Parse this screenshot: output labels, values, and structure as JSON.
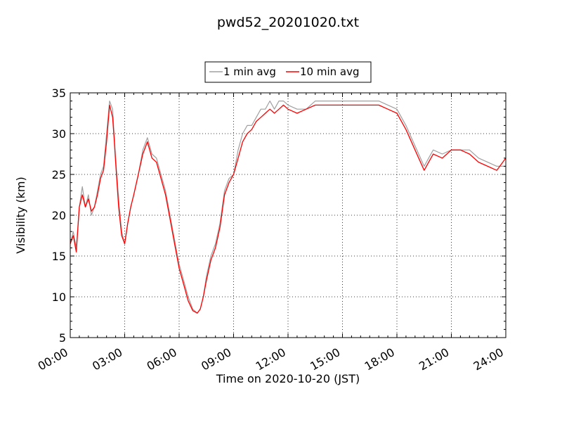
{
  "chart_data": {
    "type": "line",
    "title": "pwd52_20201020.txt",
    "xlabel": "Time on 2020-10-20 (JST)",
    "ylabel": "Visibility (km)",
    "xlim": [
      "00:00",
      "24:00"
    ],
    "ylim": [
      5,
      35
    ],
    "x_ticks": [
      "00:00",
      "03:00",
      "06:00",
      "09:00",
      "12:00",
      "15:00",
      "18:00",
      "21:00",
      "24:00"
    ],
    "y_ticks": [
      5,
      10,
      15,
      20,
      25,
      30,
      35
    ],
    "grid": true,
    "legend_position": "top-center",
    "series": [
      {
        "name": "1 min avg",
        "color": "#a0a0a0",
        "time": [
          "00:00",
          "00:10",
          "00:20",
          "00:30",
          "00:40",
          "00:50",
          "01:00",
          "01:10",
          "01:20",
          "01:30",
          "01:40",
          "01:50",
          "02:00",
          "02:10",
          "02:20",
          "02:25",
          "02:30",
          "02:40",
          "02:50",
          "03:00",
          "03:10",
          "03:20",
          "03:30",
          "03:45",
          "04:00",
          "04:15",
          "04:30",
          "04:45",
          "05:00",
          "05:15",
          "05:30",
          "05:45",
          "06:00",
          "06:15",
          "06:30",
          "06:45",
          "07:00",
          "07:10",
          "07:20",
          "07:30",
          "07:45",
          "08:00",
          "08:15",
          "08:30",
          "08:45",
          "09:00",
          "09:15",
          "09:30",
          "09:45",
          "10:00",
          "10:15",
          "10:30",
          "10:45",
          "11:00",
          "11:15",
          "11:30",
          "11:45",
          "12:00",
          "12:30",
          "13:00",
          "13:30",
          "14:00",
          "14:30",
          "15:00",
          "15:30",
          "16:00",
          "16:30",
          "17:00",
          "17:30",
          "18:00",
          "18:30",
          "19:00",
          "19:30",
          "19:45",
          "20:00",
          "20:30",
          "21:00",
          "21:30",
          "22:00",
          "22:30",
          "23:00",
          "23:30",
          "24:00"
        ],
        "values": [
          16.5,
          18,
          16,
          21,
          23.5,
          21,
          22.5,
          20,
          21,
          23,
          25,
          26,
          30,
          34,
          33,
          30,
          27,
          22,
          18,
          16.5,
          19,
          21,
          22.5,
          25,
          28,
          29.5,
          27.5,
          27,
          25,
          23,
          20,
          17,
          14,
          12,
          10,
          8.5,
          8,
          8.5,
          10,
          12.5,
          15,
          16.5,
          19,
          23,
          24.5,
          25,
          28,
          30,
          31,
          31,
          32,
          33,
          33,
          34,
          33,
          34,
          34,
          33.5,
          33,
          33,
          34,
          34,
          34,
          34,
          34,
          34,
          34,
          34,
          33.5,
          33,
          31,
          28.5,
          26,
          27,
          28,
          27.5,
          28,
          28,
          28,
          27,
          26.5,
          26,
          26
        ]
      },
      {
        "name": "10 min avg",
        "color": "#ff0000",
        "time": [
          "00:00",
          "00:10",
          "00:20",
          "00:30",
          "00:40",
          "00:50",
          "01:00",
          "01:10",
          "01:20",
          "01:30",
          "01:40",
          "01:50",
          "02:00",
          "02:10",
          "02:20",
          "02:25",
          "02:30",
          "02:40",
          "02:50",
          "03:00",
          "03:10",
          "03:20",
          "03:30",
          "03:45",
          "04:00",
          "04:15",
          "04:30",
          "04:45",
          "05:00",
          "05:15",
          "05:30",
          "05:45",
          "06:00",
          "06:15",
          "06:30",
          "06:45",
          "07:00",
          "07:10",
          "07:20",
          "07:30",
          "07:45",
          "08:00",
          "08:15",
          "08:30",
          "08:45",
          "09:00",
          "09:15",
          "09:30",
          "09:45",
          "10:00",
          "10:15",
          "10:30",
          "10:45",
          "11:00",
          "11:15",
          "11:30",
          "11:45",
          "12:00",
          "12:30",
          "13:00",
          "13:30",
          "14:00",
          "14:30",
          "15:00",
          "15:30",
          "16:00",
          "16:30",
          "17:00",
          "17:30",
          "18:00",
          "18:30",
          "19:00",
          "19:30",
          "19:45",
          "20:00",
          "20:30",
          "21:00",
          "21:30",
          "22:00",
          "22:30",
          "23:00",
          "23:30",
          "24:00"
        ],
        "values": [
          16.5,
          17.5,
          15.5,
          21,
          22.5,
          21,
          22,
          20.5,
          21,
          22.5,
          24.5,
          25.5,
          29,
          33.5,
          32,
          29.5,
          26.5,
          21,
          17.5,
          16.5,
          19,
          21,
          22.5,
          25,
          27.5,
          29,
          27,
          26.5,
          24.5,
          22.5,
          19.5,
          16.5,
          13.5,
          11.5,
          9.5,
          8.3,
          8.0,
          8.5,
          10,
          12,
          14.5,
          16,
          18.5,
          22.5,
          24,
          25,
          27,
          29,
          30,
          30.5,
          31.5,
          32,
          32.5,
          33,
          32.5,
          33,
          33.5,
          33,
          32.5,
          33,
          33.5,
          33.5,
          33.5,
          33.5,
          33.5,
          33.5,
          33.5,
          33.5,
          33,
          32.5,
          30.5,
          28,
          25.5,
          26.5,
          27.5,
          27,
          28,
          28,
          27.5,
          26.5,
          26,
          25.5,
          27
        ]
      }
    ]
  }
}
